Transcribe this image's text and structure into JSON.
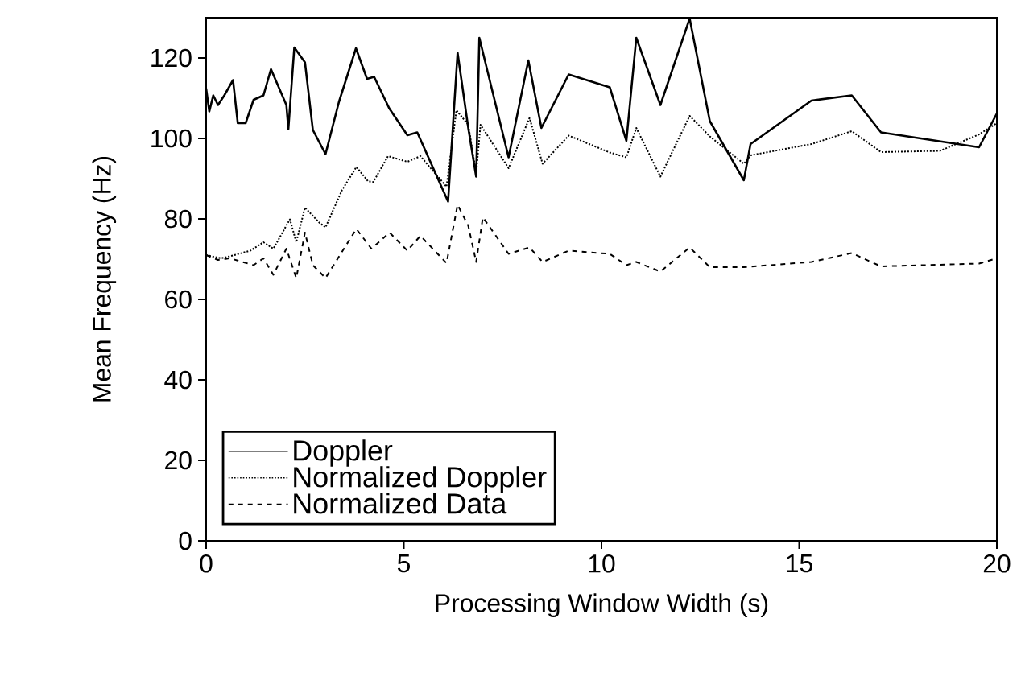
{
  "chart_data": {
    "type": "line",
    "xlabel": "Processing Window Width (s)",
    "ylabel": "Mean Frequency (Hz)",
    "xlim": [
      0,
      20
    ],
    "ylim": [
      0,
      130
    ],
    "xticks": [
      0,
      5,
      10,
      15,
      20
    ],
    "yticks": [
      0,
      20,
      40,
      60,
      80,
      100,
      120
    ],
    "grid": false,
    "legend": "bottom left",
    "marker": "none",
    "series": [
      {
        "name": "Doppler",
        "color": "#000000",
        "line_style": "solid",
        "x": [
          0,
          0.08,
          0.18,
          0.3,
          0.46,
          0.68,
          0.8,
          1.0,
          1.2,
          1.45,
          1.64,
          2.03,
          2.08,
          2.23,
          2.5,
          2.7,
          3.02,
          3.36,
          3.79,
          4.07,
          4.25,
          4.63,
          5.09,
          5.34,
          6.12,
          6.36,
          6.63,
          6.83,
          6.91,
          7.65,
          8.15,
          8.48,
          9.17,
          10.21,
          10.63,
          10.88,
          11.49,
          12.23,
          12.74,
          13.6,
          13.77,
          15.31,
          16.33,
          17.07,
          19.55,
          20
        ],
        "values": [
          112.4,
          106.7,
          110.7,
          108.3,
          110.7,
          114.5,
          103.8,
          103.8,
          109.6,
          110.7,
          117.2,
          108.3,
          102.3,
          122.6,
          118.9,
          102.1,
          96.1,
          109.1,
          122.4,
          114.8,
          115.3,
          107.5,
          100.8,
          101.5,
          84.3,
          121.3,
          102.6,
          90.5,
          125.0,
          95.3,
          119.4,
          102.6,
          115.9,
          112.7,
          99.4,
          125.0,
          108.3,
          129.8,
          104.3,
          89.6,
          98.6,
          109.4,
          110.7,
          101.5,
          97.8,
          106.2
        ]
      },
      {
        "name": "Normalized Doppler",
        "color": "#000000",
        "line_style": "dotted",
        "x": [
          0,
          0.38,
          0.71,
          1.12,
          1.45,
          1.7,
          2.12,
          2.28,
          2.5,
          2.86,
          3.02,
          3.44,
          3.8,
          4.1,
          4.23,
          4.6,
          5.09,
          5.42,
          6.08,
          6.33,
          6.63,
          6.83,
          6.94,
          7.65,
          8.18,
          8.51,
          9.17,
          10.21,
          10.63,
          10.88,
          11.49,
          12.23,
          12.74,
          13.6,
          13.77,
          15.31,
          16.33,
          17.07,
          18.56,
          19.55,
          20
        ],
        "values": [
          71.0,
          70.2,
          71.0,
          72.1,
          74.2,
          72.6,
          79.9,
          74.2,
          82.8,
          79.1,
          77.9,
          87.2,
          92.9,
          89.3,
          89.2,
          95.6,
          94.2,
          95.6,
          88.0,
          107.0,
          103.4,
          91.3,
          103.4,
          92.6,
          105.1,
          93.7,
          100.7,
          96.5,
          95.3,
          102.6,
          90.5,
          105.6,
          100.5,
          93.7,
          95.8,
          98.6,
          101.8,
          96.6,
          96.9,
          101.0,
          103.8
        ]
      },
      {
        "name": "Normalized Data",
        "color": "#000000",
        "line_style": "dashed",
        "x": [
          0,
          0.3,
          0.6,
          1.2,
          1.45,
          1.7,
          2.03,
          2.28,
          2.5,
          2.7,
          3.02,
          3.8,
          4.18,
          4.64,
          5.09,
          5.42,
          6.08,
          6.36,
          6.63,
          6.83,
          7.0,
          7.65,
          8.18,
          8.51,
          9.17,
          10.21,
          10.63,
          10.88,
          11.49,
          12.23,
          12.74,
          13.6,
          15.31,
          16.33,
          17.07,
          19.55,
          20
        ],
        "values": [
          71.0,
          69.8,
          70.2,
          68.5,
          70.2,
          66.1,
          72.6,
          65.3,
          76.6,
          68.5,
          65.3,
          77.5,
          72.6,
          76.6,
          72.1,
          75.8,
          69.0,
          83.5,
          78.3,
          69.3,
          80.4,
          71.3,
          72.9,
          69.3,
          72.1,
          71.3,
          68.5,
          69.3,
          66.9,
          72.9,
          68.0,
          68.0,
          69.3,
          71.5,
          68.2,
          68.9,
          70.2
        ]
      }
    ]
  }
}
